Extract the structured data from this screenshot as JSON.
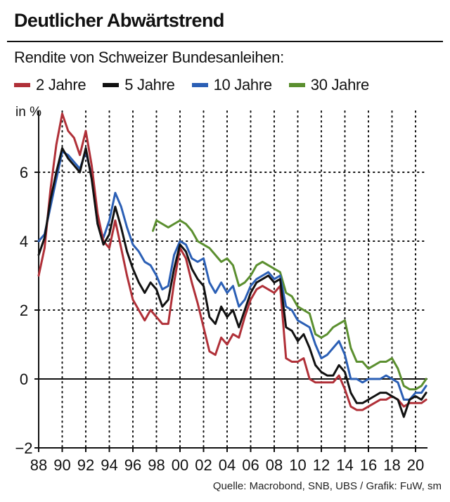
{
  "header": {
    "title": "Deutlicher Abwärtstrend",
    "subtitle": "Rendite von Schweizer Bundesanleihen:"
  },
  "legend": [
    {
      "label": "2 Jahre",
      "color": "#b03038"
    },
    {
      "label": "5 Jahre",
      "color": "#111111"
    },
    {
      "label": "10 Jahre",
      "color": "#2b5fb5"
    },
    {
      "label": "30 Jahre",
      "color": "#5b8f2f"
    }
  ],
  "unit_label": "in %",
  "source": "Quelle:  Macrobond, SNB, UBS / Grafik: FuW, sm",
  "chart_data": {
    "type": "line",
    "title": "Deutlicher Abwärtstrend",
    "subtitle": "Rendite von Schweizer Bundesanleihen:",
    "ylabel": "in %",
    "xlim": [
      1988,
      2021.5
    ],
    "ylim": [
      -2,
      7.8
    ],
    "x_ticks": [
      1988,
      1990,
      1992,
      1994,
      1996,
      1998,
      2000,
      2002,
      2004,
      2006,
      2008,
      2010,
      2012,
      2014,
      2016,
      2018,
      2020
    ],
    "x_tick_labels": [
      "88",
      "90",
      "92",
      "94",
      "96",
      "98",
      "00",
      "02",
      "04",
      "06",
      "08",
      "10",
      "12",
      "14",
      "16",
      "18",
      "20"
    ],
    "y_ticks": [
      -2,
      0,
      2,
      4,
      6
    ],
    "y_tick_labels": [
      "−2",
      "0",
      "2",
      "4",
      "6"
    ],
    "grid": "dotted vertical and horizontal",
    "legend_position": "top",
    "series": [
      {
        "name": "2 Jahre",
        "color": "#b03038",
        "x": [
          1988.0,
          1988.5,
          1989.0,
          1989.5,
          1990.0,
          1990.5,
          1991.0,
          1991.5,
          1992.0,
          1992.5,
          1993.0,
          1993.5,
          1994.0,
          1994.5,
          1995.0,
          1995.5,
          1996.0,
          1996.5,
          1997.0,
          1997.5,
          1998.0,
          1998.5,
          1999.0,
          1999.5,
          2000.0,
          2000.5,
          2001.0,
          2001.5,
          2002.0,
          2002.5,
          2003.0,
          2003.5,
          2004.0,
          2004.5,
          2005.0,
          2005.5,
          2006.0,
          2006.5,
          2007.0,
          2007.5,
          2008.0,
          2008.5,
          2009.0,
          2009.5,
          2010.0,
          2010.5,
          2011.0,
          2011.5,
          2012.0,
          2012.5,
          2013.0,
          2013.5,
          2014.0,
          2014.5,
          2015.0,
          2015.5,
          2016.0,
          2016.5,
          2017.0,
          2017.5,
          2018.0,
          2018.5,
          2019.0,
          2019.5,
          2020.0,
          2020.5,
          2020.9
        ],
        "y": [
          3.0,
          3.8,
          5.5,
          6.8,
          7.7,
          7.2,
          7.0,
          6.5,
          7.2,
          6.2,
          4.8,
          4.0,
          3.8,
          4.6,
          3.8,
          3.0,
          2.3,
          2.0,
          1.7,
          2.0,
          1.8,
          1.6,
          1.6,
          2.8,
          3.8,
          3.5,
          2.8,
          2.2,
          1.5,
          0.8,
          0.7,
          1.2,
          1.0,
          1.3,
          1.2,
          1.8,
          2.3,
          2.6,
          2.7,
          2.6,
          2.5,
          2.7,
          0.6,
          0.5,
          0.5,
          0.6,
          0.0,
          -0.1,
          -0.1,
          -0.1,
          -0.1,
          0.1,
          -0.3,
          -0.8,
          -0.9,
          -0.9,
          -0.8,
          -0.7,
          -0.6,
          -0.6,
          -0.5,
          -0.6,
          -0.8,
          -0.7,
          -0.7,
          -0.7,
          -0.6
        ]
      },
      {
        "name": "5 Jahre",
        "color": "#111111",
        "x": [
          1988.0,
          1988.5,
          1989.0,
          1989.5,
          1990.0,
          1990.5,
          1991.0,
          1991.5,
          1992.0,
          1992.5,
          1993.0,
          1993.5,
          1994.0,
          1994.5,
          1995.0,
          1995.5,
          1996.0,
          1996.5,
          1997.0,
          1997.5,
          1998.0,
          1998.5,
          1999.0,
          1999.5,
          2000.0,
          2000.5,
          2001.0,
          2001.5,
          2002.0,
          2002.5,
          2003.0,
          2003.5,
          2004.0,
          2004.5,
          2005.0,
          2005.5,
          2006.0,
          2006.5,
          2007.0,
          2007.5,
          2008.0,
          2008.5,
          2009.0,
          2009.5,
          2010.0,
          2010.5,
          2011.0,
          2011.5,
          2012.0,
          2012.5,
          2013.0,
          2013.5,
          2014.0,
          2014.5,
          2015.0,
          2015.5,
          2016.0,
          2016.5,
          2017.0,
          2017.5,
          2018.0,
          2018.5,
          2019.0,
          2019.5,
          2020.0,
          2020.5,
          2020.9
        ],
        "y": [
          3.6,
          4.1,
          5.2,
          6.0,
          6.7,
          6.4,
          6.2,
          6.0,
          6.7,
          5.8,
          4.5,
          3.9,
          4.2,
          5.0,
          4.4,
          3.7,
          3.2,
          2.8,
          2.5,
          2.8,
          2.6,
          2.1,
          2.3,
          3.2,
          3.9,
          3.7,
          3.2,
          2.9,
          2.7,
          1.8,
          1.6,
          2.1,
          1.8,
          2.0,
          1.5,
          2.0,
          2.5,
          2.8,
          2.9,
          3.0,
          2.8,
          2.9,
          1.5,
          1.4,
          1.1,
          1.3,
          0.9,
          0.4,
          0.2,
          0.1,
          0.1,
          0.4,
          0.2,
          -0.4,
          -0.7,
          -0.7,
          -0.6,
          -0.5,
          -0.4,
          -0.4,
          -0.5,
          -0.6,
          -1.1,
          -0.6,
          -0.5,
          -0.6,
          -0.4
        ]
      },
      {
        "name": "10 Jahre",
        "color": "#2b5fb5",
        "x": [
          1988.0,
          1988.5,
          1989.0,
          1989.5,
          1990.0,
          1990.5,
          1991.0,
          1991.5,
          1992.0,
          1992.5,
          1993.0,
          1993.5,
          1994.0,
          1994.5,
          1995.0,
          1995.5,
          1996.0,
          1996.5,
          1997.0,
          1997.5,
          1998.0,
          1998.5,
          1999.0,
          1999.5,
          2000.0,
          2000.5,
          2001.0,
          2001.5,
          2002.0,
          2002.5,
          2003.0,
          2003.5,
          2004.0,
          2004.5,
          2005.0,
          2005.5,
          2006.0,
          2006.5,
          2007.0,
          2007.5,
          2008.0,
          2008.5,
          2009.0,
          2009.5,
          2010.0,
          2010.5,
          2011.0,
          2011.5,
          2012.0,
          2012.5,
          2013.0,
          2013.5,
          2014.0,
          2014.5,
          2015.0,
          2015.5,
          2016.0,
          2016.5,
          2017.0,
          2017.5,
          2018.0,
          2018.5,
          2019.0,
          2019.5,
          2020.0,
          2020.5,
          2020.9
        ],
        "y": [
          4.0,
          4.2,
          5.0,
          5.8,
          6.6,
          6.5,
          6.3,
          6.1,
          6.6,
          5.9,
          4.5,
          4.1,
          4.6,
          5.4,
          5.0,
          4.4,
          3.9,
          3.7,
          3.4,
          3.3,
          3.0,
          2.6,
          2.7,
          3.6,
          4.0,
          3.9,
          3.5,
          3.4,
          3.5,
          2.8,
          2.5,
          2.8,
          2.5,
          2.7,
          2.1,
          2.3,
          2.7,
          2.9,
          3.0,
          3.1,
          2.9,
          3.0,
          2.1,
          2.0,
          1.7,
          1.6,
          1.5,
          1.0,
          0.6,
          0.7,
          0.9,
          1.1,
          0.7,
          0.0,
          0.0,
          -0.1,
          0.0,
          0.0,
          0.0,
          0.1,
          0.0,
          -0.1,
          -0.6,
          -0.6,
          -0.4,
          -0.4,
          -0.2
        ]
      },
      {
        "name": "30 Jahre",
        "color": "#5b8f2f",
        "x": [
          1997.7,
          1998.0,
          1998.5,
          1999.0,
          1999.5,
          2000.0,
          2000.5,
          2001.0,
          2001.5,
          2002.0,
          2002.5,
          2003.0,
          2003.5,
          2004.0,
          2004.5,
          2005.0,
          2005.5,
          2006.0,
          2006.5,
          2007.0,
          2007.5,
          2008.0,
          2008.5,
          2009.0,
          2009.5,
          2010.0,
          2010.5,
          2011.0,
          2011.5,
          2012.0,
          2012.5,
          2013.0,
          2013.5,
          2014.0,
          2014.5,
          2015.0,
          2015.5,
          2016.0,
          2016.5,
          2017.0,
          2017.5,
          2018.0,
          2018.5,
          2019.0,
          2019.5,
          2020.0,
          2020.5,
          2020.9
        ],
        "y": [
          4.3,
          4.6,
          4.5,
          4.4,
          4.5,
          4.6,
          4.5,
          4.3,
          4.0,
          3.9,
          3.8,
          3.6,
          3.4,
          3.5,
          3.3,
          2.7,
          2.8,
          3.0,
          3.3,
          3.4,
          3.3,
          3.2,
          3.1,
          2.5,
          2.4,
          2.1,
          2.0,
          1.9,
          1.3,
          1.2,
          1.3,
          1.5,
          1.6,
          1.7,
          0.9,
          0.5,
          0.5,
          0.3,
          0.4,
          0.5,
          0.5,
          0.6,
          0.3,
          -0.2,
          -0.3,
          -0.3,
          -0.2,
          0.0
        ]
      }
    ]
  }
}
